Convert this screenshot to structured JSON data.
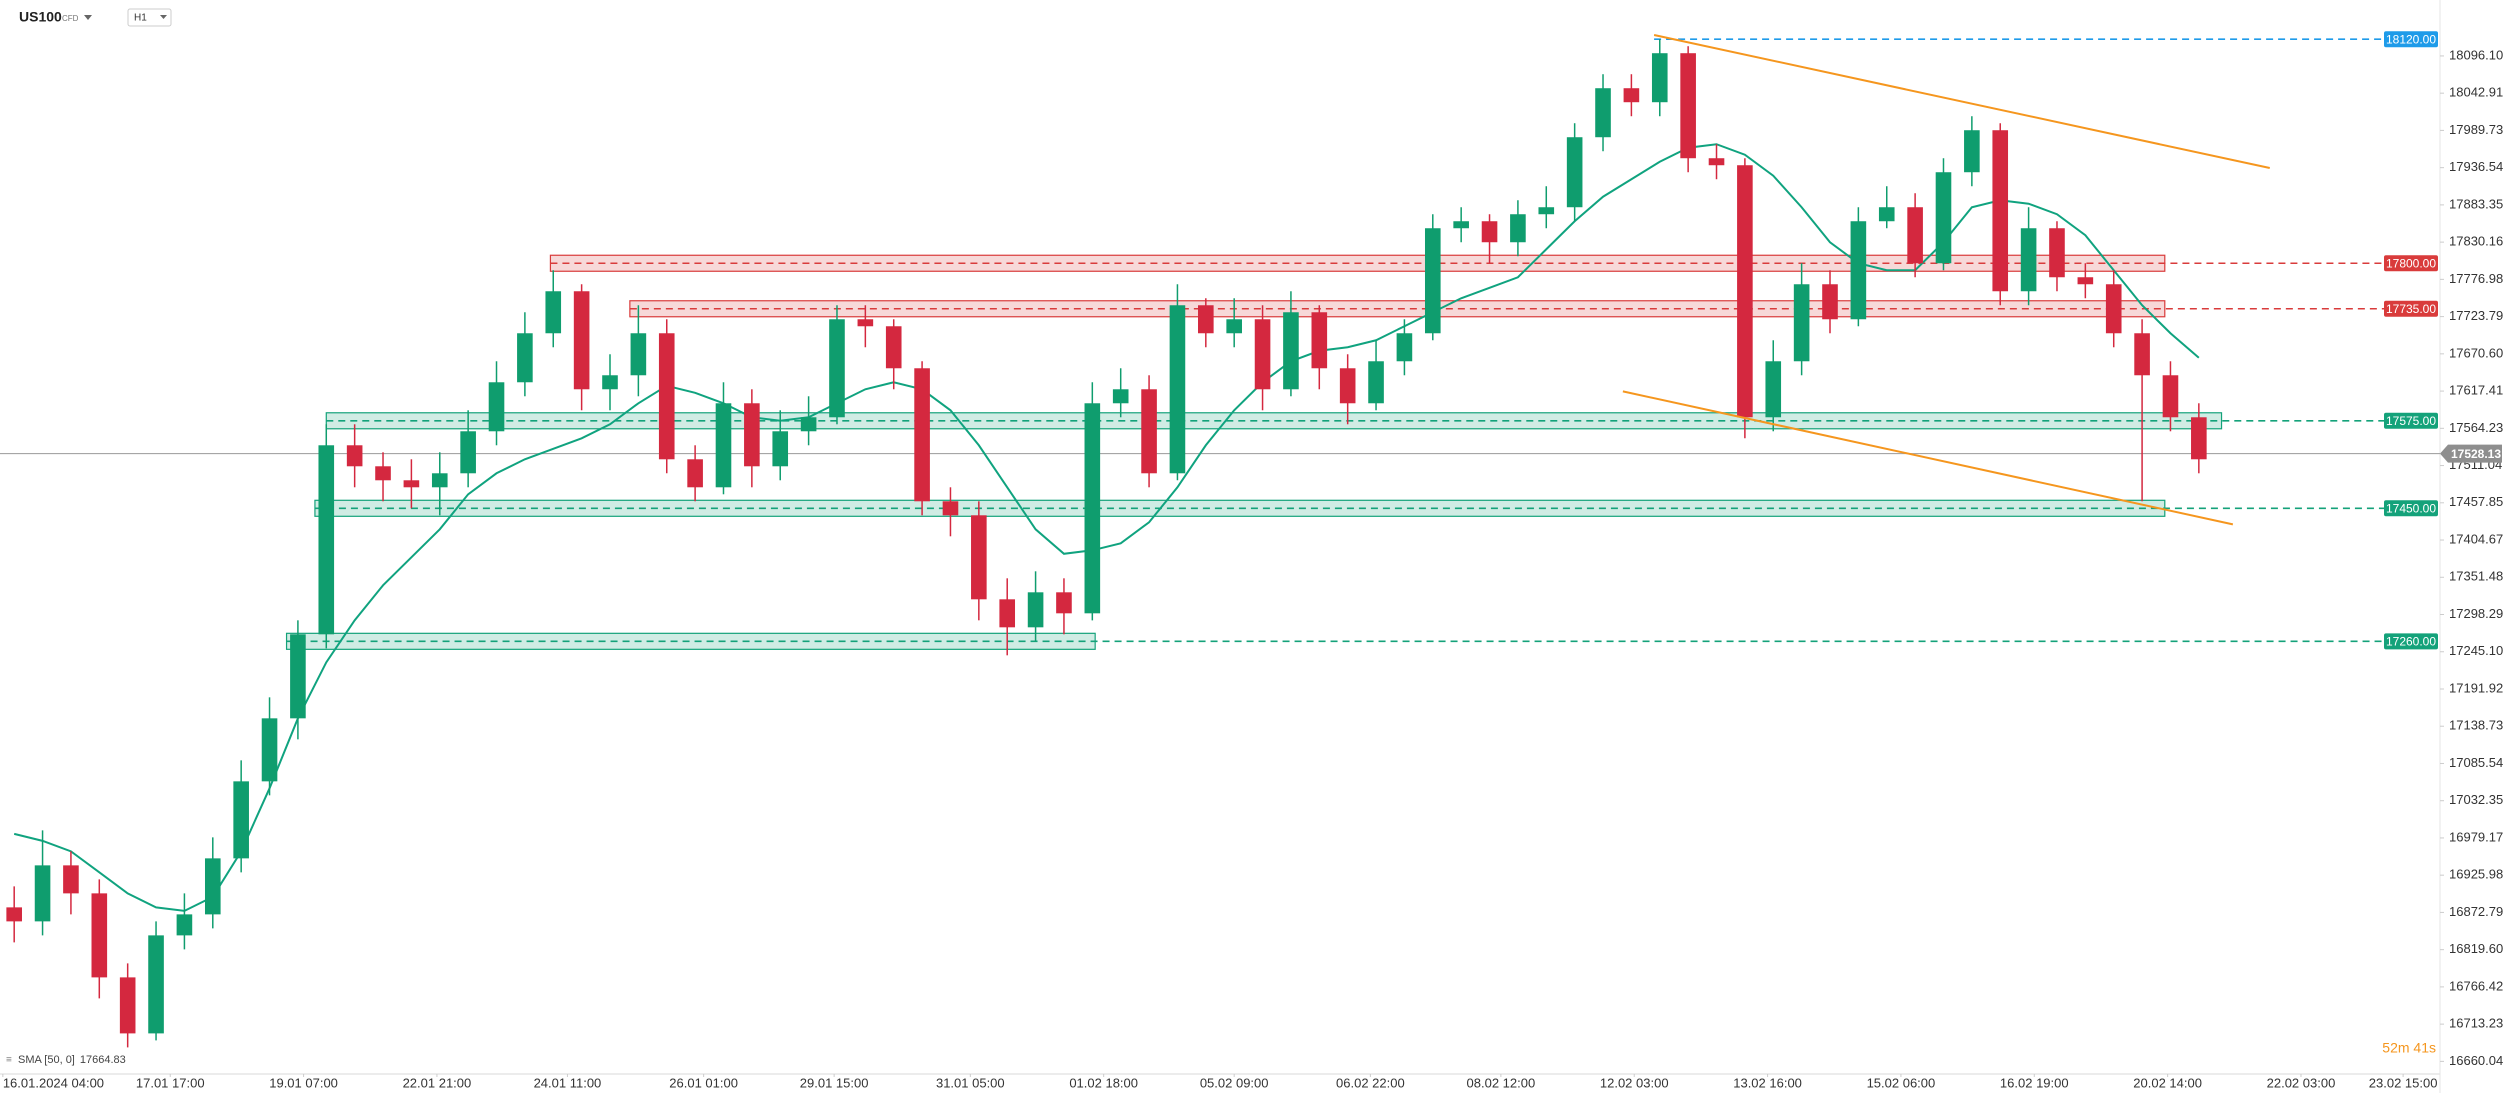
{
  "chart_data": {
    "type": "candlestick",
    "title": "US100",
    "subtitle": "CFD",
    "timeframe": "H1",
    "xlim": [
      0,
      86
    ],
    "ylim": [
      16642,
      18176
    ],
    "yticks": [
      {
        "value": 18096.1,
        "label": "18096.10"
      },
      18042.91,
      17989.73,
      17936.54,
      17883.35,
      17830.16,
      17776.98,
      17723.79,
      {
        "value": 17670.6,
        "label": "17670.60"
      },
      17617.41,
      17564.23,
      17511.04,
      17457.85,
      17404.67,
      17351.48,
      17298.29,
      {
        "value": 17245.1,
        "label": "17245.10"
      },
      17191.92,
      17138.73,
      17085.54,
      17032.35,
      16979.17,
      16925.98,
      16872.79,
      {
        "value": 16819.6,
        "label": "16819.60"
      },
      16766.42,
      16713.23,
      16660.04
    ],
    "xticks": [
      {
        "value": 0.1,
        "label": "16.01.2024 04:00"
      },
      {
        "value": 6.0,
        "label": "17.01 17:00"
      },
      {
        "value": 10.7,
        "label": "19.01 07:00"
      },
      {
        "value": 15.4,
        "label": "22.01 21:00"
      },
      {
        "value": 20.0,
        "label": "24.01 11:00"
      },
      {
        "value": 24.8,
        "label": "26.01 01:00"
      },
      {
        "value": 29.4,
        "label": "29.01 15:00"
      },
      {
        "value": 34.2,
        "label": "31.01 05:00"
      },
      {
        "value": 38.9,
        "label": "01.02 18:00"
      },
      {
        "value": 43.5,
        "label": "05.02 09:00"
      },
      {
        "value": 48.3,
        "label": "06.02 22:00"
      },
      {
        "value": 52.9,
        "label": "08.02 12:00"
      },
      {
        "value": 57.6,
        "label": "12.02 03:00"
      },
      {
        "value": 62.3,
        "label": "13.02 16:00"
      },
      {
        "value": 67.0,
        "label": "15.02 06:00"
      },
      {
        "value": 71.7,
        "label": "16.02 19:00"
      },
      {
        "value": 76.4,
        "label": "20.02 14:00"
      },
      {
        "value": 81.1,
        "label": "22.02 03:00"
      },
      {
        "value": 84.7,
        "label": "23.02 15:00"
      }
    ],
    "up_color": "#0f9d6e",
    "down_color": "#d4283f",
    "open": [
      16880,
      16860,
      16940,
      16900,
      16780,
      16700,
      16840,
      16870,
      16950,
      17060,
      17150,
      17270,
      17540,
      17510,
      17490,
      17480,
      17500,
      17560,
      17630,
      17700,
      17760,
      17620,
      17640,
      17700,
      17520,
      17480,
      17600,
      17510,
      17560,
      17580,
      17720,
      17710,
      17650,
      17460,
      17440,
      17320,
      17280,
      17330,
      17300,
      17600,
      17620,
      17500,
      17740,
      17700,
      17720,
      17620,
      17730,
      17650,
      17600,
      17660,
      17700,
      17850,
      17860,
      17830,
      17870,
      17880,
      17980,
      18050,
      18030,
      18100,
      17950,
      17940,
      17580,
      17660,
      17770,
      17720,
      17860,
      17880,
      17800,
      17930,
      17990,
      17760,
      17850,
      17780,
      17770,
      17700,
      17640,
      17580
    ],
    "high": [
      16910,
      16990,
      16960,
      16920,
      16800,
      16860,
      16900,
      16980,
      17090,
      17180,
      17290,
      17570,
      17570,
      17530,
      17520,
      17530,
      17590,
      17660,
      17730,
      17790,
      17770,
      17670,
      17740,
      17720,
      17540,
      17630,
      17620,
      17590,
      17610,
      17740,
      17740,
      17720,
      17660,
      17480,
      17460,
      17350,
      17360,
      17350,
      17630,
      17650,
      17640,
      17770,
      17750,
      17750,
      17740,
      17760,
      17740,
      17670,
      17690,
      17720,
      17870,
      17880,
      17870,
      17890,
      17910,
      18000,
      18070,
      18070,
      18120,
      18110,
      17970,
      17950,
      17690,
      17800,
      17790,
      17880,
      17910,
      17900,
      17950,
      18010,
      18000,
      17880,
      17860,
      17800,
      17790,
      17720,
      17660,
      17600
    ],
    "low": [
      16830,
      16840,
      16870,
      16750,
      16680,
      16690,
      16820,
      16850,
      16930,
      17040,
      17120,
      17250,
      17480,
      17460,
      17450,
      17440,
      17480,
      17540,
      17610,
      17680,
      17590,
      17590,
      17610,
      17500,
      17460,
      17470,
      17480,
      17490,
      17540,
      17570,
      17680,
      17620,
      17440,
      17410,
      17290,
      17240,
      17260,
      17270,
      17290,
      17580,
      17480,
      17490,
      17680,
      17680,
      17590,
      17610,
      17620,
      17570,
      17590,
      17640,
      17690,
      17830,
      17800,
      17810,
      17850,
      17860,
      17960,
      18010,
      18010,
      17930,
      17920,
      17550,
      17560,
      17640,
      17700,
      17710,
      17850,
      17780,
      17790,
      17910,
      17740,
      17740,
      17760,
      17750,
      17680,
      17460,
      17560,
      17500
    ],
    "close": [
      16860,
      16940,
      16900,
      16780,
      16700,
      16840,
      16870,
      16950,
      17060,
      17150,
      17270,
      17540,
      17510,
      17490,
      17480,
      17500,
      17560,
      17630,
      17700,
      17760,
      17620,
      17640,
      17700,
      17520,
      17480,
      17600,
      17510,
      17560,
      17580,
      17720,
      17710,
      17650,
      17460,
      17440,
      17320,
      17280,
      17330,
      17300,
      17600,
      17620,
      17500,
      17740,
      17700,
      17720,
      17620,
      17730,
      17650,
      17600,
      17660,
      17700,
      17850,
      17860,
      17830,
      17870,
      17880,
      17980,
      18050,
      18030,
      18100,
      17950,
      17940,
      17580,
      17660,
      17770,
      17720,
      17860,
      17880,
      17800,
      17930,
      17990,
      17760,
      17850,
      17780,
      17770,
      17700,
      17640,
      17580,
      17520
    ],
    "series": [
      {
        "name": "SMA [50, 0]",
        "color": "#10a37f",
        "last_value": 17664.83,
        "values": [
          16985,
          16975,
          16960,
          16930,
          16900,
          16880,
          16875,
          16895,
          16960,
          17050,
          17150,
          17230,
          17290,
          17340,
          17380,
          17420,
          17470,
          17500,
          17520,
          17535,
          17550,
          17570,
          17600,
          17625,
          17615,
          17600,
          17580,
          17575,
          17580,
          17600,
          17620,
          17630,
          17620,
          17590,
          17540,
          17480,
          17420,
          17385,
          17390,
          17400,
          17430,
          17480,
          17540,
          17590,
          17630,
          17660,
          17675,
          17680,
          17690,
          17710,
          17730,
          17750,
          17765,
          17780,
          17820,
          17860,
          17895,
          17920,
          17945,
          17965,
          17970,
          17955,
          17925,
          17880,
          17830,
          17800,
          17790,
          17790,
          17830,
          17880,
          17890,
          17885,
          17870,
          17840,
          17790,
          17740,
          17700,
          17665
        ]
      }
    ],
    "levels": [
      {
        "value": 18120,
        "label": "18120.00",
        "color": "#1e9be9",
        "start": 58.3,
        "end": null
      },
      {
        "value": 17800,
        "label": "17800.00",
        "color": "#d93b3b",
        "start": 19.4,
        "end": 76.3
      },
      {
        "value": 17735,
        "label": "17735.00",
        "color": "#d93b3b",
        "start": 22.2,
        "end": 76.3
      },
      {
        "value": 17575,
        "label": "17575.00",
        "color": "#14a27a",
        "start": 11.5,
        "end": 78.3
      },
      {
        "value": 17450,
        "label": "17450.00",
        "color": "#14a27a",
        "start": 11.1,
        "end": 76.3
      },
      {
        "value": 17260,
        "label": "17260.00",
        "color": "#14a27a",
        "start": 10.1,
        "end": 38.6
      }
    ],
    "current_price": 17528.13,
    "trendlines": [
      {
        "color": "#f5961e",
        "points": [
          [
            58.3,
            18126
          ],
          [
            80.0,
            17936
          ]
        ]
      },
      {
        "color": "#f5961e",
        "points": [
          [
            57.2,
            17617
          ],
          [
            78.7,
            17427
          ]
        ]
      }
    ],
    "countdown": "52m 41s"
  }
}
